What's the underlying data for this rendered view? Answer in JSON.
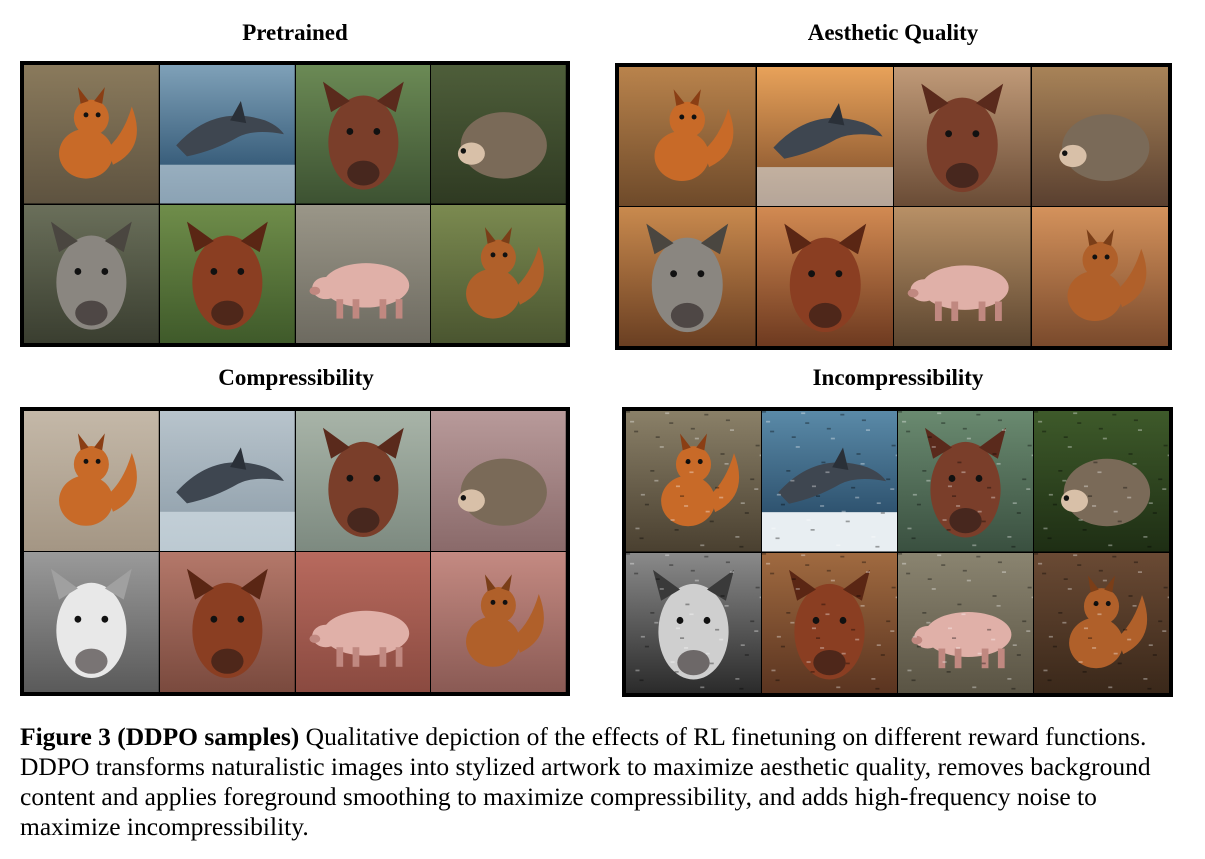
{
  "panels": {
    "pretrained": {
      "title": "Pretrained",
      "tiles": [
        "fox",
        "dolphin",
        "cow",
        "hedgehog",
        "wolf",
        "horse",
        "pig",
        "squirrel"
      ]
    },
    "aesthetic": {
      "title": "Aesthetic Quality",
      "tiles": [
        "fox",
        "dolphin",
        "cow",
        "hedgehog",
        "wolf",
        "horse",
        "pig",
        "squirrel"
      ]
    },
    "compress": {
      "title": "Compressibility",
      "tiles": [
        "fox",
        "dolphin",
        "cow",
        "hedgehog",
        "wolf",
        "horse",
        "pig",
        "squirrel"
      ]
    },
    "incompress": {
      "title": "Incompressibility",
      "tiles": [
        "fox",
        "dolphin",
        "cow",
        "hedgehog",
        "wolf",
        "horse",
        "pig",
        "squirrel"
      ]
    }
  },
  "caption": {
    "lead": "Figure 3 (DDPO samples)",
    "text": " Qualitative depiction of the effects of RL finetuning on different reward functions. DDPO transforms naturalistic images into stylized artwork to maximize aesthetic quality, removes background content and applies foreground smoothing to maximize compressibility, and adds high-frequency noise to maximize incompressibility."
  }
}
